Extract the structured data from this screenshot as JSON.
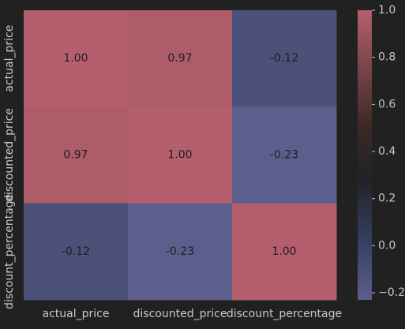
{
  "chart_data": {
    "type": "heatmap",
    "x_labels": [
      "actual_price",
      "discounted_price",
      "discount_percentage"
    ],
    "y_labels": [
      "actual_price",
      "discounted_price",
      "discount_percentage"
    ],
    "values": [
      [
        1.0,
        0.97,
        -0.12
      ],
      [
        0.97,
        1.0,
        -0.23
      ],
      [
        -0.12,
        -0.23,
        1.0
      ]
    ],
    "cell_labels": [
      [
        "1.00",
        "0.97",
        "-0.12"
      ],
      [
        "0.97",
        "1.00",
        "-0.23"
      ],
      [
        "-0.12",
        "-0.23",
        "1.00"
      ]
    ],
    "colorbar": {
      "min": -0.23,
      "max": 1.0,
      "ticks": [
        1.0,
        0.8,
        0.6,
        0.4,
        0.2,
        0.0,
        -0.2
      ],
      "tick_labels": [
        "1.0",
        "0.8",
        "0.6",
        "0.4",
        "0.2",
        "0.0",
        "−0.2"
      ]
    },
    "colors": {
      "background": "#212121",
      "low": "#5c5f8e",
      "mid_low": "#353f60",
      "mid": "#222226",
      "mid_high": "#3b2a25",
      "high": "#b55f6e",
      "text": "#c8c8c8",
      "cell_text": "#1e1e1e"
    }
  }
}
